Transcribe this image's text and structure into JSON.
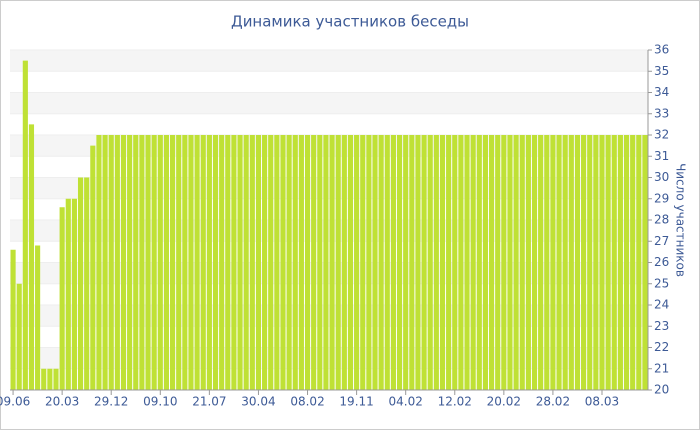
{
  "chart_data": {
    "type": "bar",
    "title": "Динамика участников беседы",
    "y_label": "Число участников",
    "categories": [
      "09.06",
      null,
      null,
      null,
      null,
      null,
      null,
      null,
      "20.03",
      null,
      null,
      null,
      null,
      null,
      null,
      null,
      "29.12",
      null,
      null,
      null,
      null,
      null,
      null,
      null,
      "09.10",
      null,
      null,
      null,
      null,
      null,
      null,
      null,
      "21.07",
      null,
      null,
      null,
      null,
      null,
      null,
      null,
      "30.04",
      null,
      null,
      null,
      null,
      null,
      null,
      null,
      "08.02",
      null,
      null,
      null,
      null,
      null,
      null,
      null,
      "19.11",
      null,
      null,
      null,
      null,
      null,
      null,
      null,
      "04.02",
      null,
      null,
      null,
      null,
      null,
      null,
      null,
      "12.02",
      null,
      null,
      null,
      null,
      null,
      null,
      null,
      "20.02",
      null,
      null,
      null,
      null,
      null,
      null,
      null,
      "28.02",
      null,
      null,
      null,
      null,
      null,
      null,
      null,
      "08.03",
      null,
      null,
      null,
      null,
      null,
      null,
      null
    ],
    "values": [
      26.6,
      25,
      35.5,
      32.5,
      26.8,
      21,
      21,
      21,
      28.6,
      29,
      29,
      30,
      30,
      31.5,
      32,
      32,
      32,
      32,
      32,
      32,
      32,
      32,
      32,
      32,
      32,
      32,
      32,
      32,
      32,
      32,
      32,
      32,
      32,
      32,
      32,
      32,
      32,
      32,
      32,
      32,
      32,
      32,
      32,
      32,
      32,
      32,
      32,
      32,
      32,
      32,
      32,
      32,
      32,
      32,
      32,
      32,
      32,
      32,
      32,
      32,
      32,
      32,
      32,
      32,
      32,
      32,
      32,
      32,
      32,
      32,
      32,
      32,
      32,
      32,
      32,
      32,
      32,
      32,
      32,
      32,
      32,
      32,
      32,
      32,
      32,
      32,
      32,
      32,
      32,
      32,
      32,
      32,
      32,
      32,
      32,
      32,
      32,
      32,
      32,
      32,
      32,
      32,
      32,
      32
    ],
    "color": "#bfe135",
    "ylim": [
      20,
      36
    ],
    "yticks": [
      20,
      21,
      22,
      23,
      24,
      25,
      26,
      27,
      28,
      29,
      30,
      31,
      32,
      33,
      34,
      35,
      36
    ],
    "grid": true
  }
}
